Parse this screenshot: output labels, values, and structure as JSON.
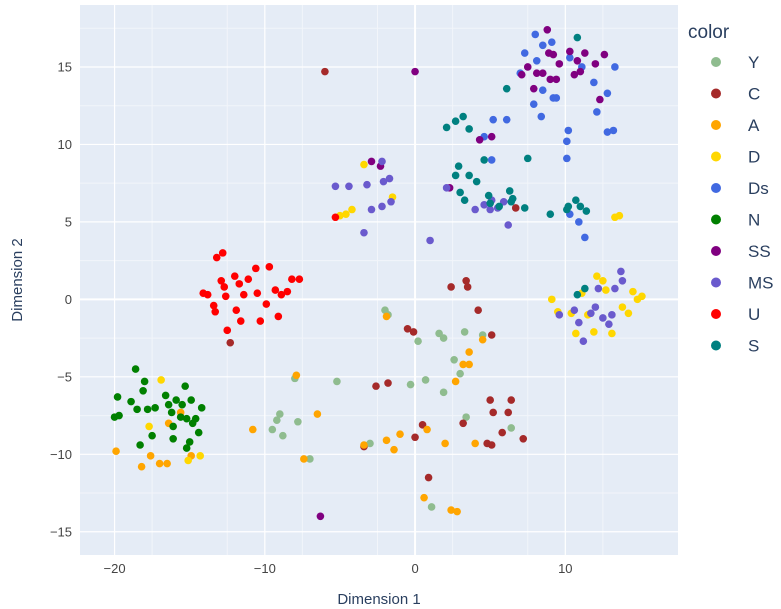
{
  "chart_data": {
    "type": "scatter",
    "xlabel": "Dimension 1",
    "ylabel": "Dimension 2",
    "xlim": [
      -22.3,
      17.5
    ],
    "ylim": [
      -16.5,
      19.0
    ],
    "xticks": [
      -20,
      -10,
      0,
      10
    ],
    "yticks": [
      -15,
      -10,
      -5,
      0,
      5,
      10,
      15
    ],
    "xtick_labels": [
      "−20",
      "−10",
      "0",
      "10"
    ],
    "ytick_labels": [
      "−15",
      "−10",
      "−5",
      "0",
      "5",
      "10",
      "15"
    ],
    "grid": true,
    "legend_title": "color",
    "legend_position": "right",
    "series": [
      {
        "name": "Y",
        "color": "#8fbc8f",
        "points": [
          [
            -8.8,
            -8.8
          ],
          [
            -9.2,
            -7.8
          ],
          [
            -9.0,
            -7.4
          ],
          [
            -9.5,
            -8.4
          ],
          [
            -7.0,
            -10.3
          ],
          [
            -8.0,
            -5.1
          ],
          [
            -5.2,
            -5.3
          ],
          [
            -7.8,
            -7.9
          ],
          [
            -3.0,
            -9.3
          ],
          [
            -2.0,
            -0.7
          ],
          [
            -1.8,
            -1.0
          ],
          [
            -0.3,
            -5.5
          ],
          [
            0.2,
            -2.7
          ],
          [
            1.6,
            -2.2
          ],
          [
            1.9,
            -2.5
          ],
          [
            2.6,
            -3.9
          ],
          [
            3.3,
            -2.1
          ],
          [
            3.0,
            -4.8
          ],
          [
            1.9,
            -6.0
          ],
          [
            0.7,
            -5.2
          ],
          [
            3.4,
            -7.6
          ],
          [
            4.5,
            -2.3
          ],
          [
            6.4,
            -8.3
          ],
          [
            1.1,
            -13.4
          ]
        ]
      },
      {
        "name": "C",
        "color": "#a52a2a",
        "points": [
          [
            -12.3,
            -2.8
          ],
          [
            -6.0,
            14.7
          ],
          [
            -2.6,
            -5.6
          ],
          [
            -1.8,
            -5.4
          ],
          [
            -0.5,
            -1.9
          ],
          [
            -0.1,
            -2.1
          ],
          [
            0.0,
            -8.9
          ],
          [
            0.5,
            -8.1
          ],
          [
            0.9,
            -11.5
          ],
          [
            2.4,
            0.8
          ],
          [
            3.4,
            1.2
          ],
          [
            3.5,
            0.8
          ],
          [
            4.2,
            -0.7
          ],
          [
            3.2,
            -8.0
          ],
          [
            5.1,
            -2.3
          ],
          [
            5.0,
            -6.5
          ],
          [
            5.2,
            -7.3
          ],
          [
            4.8,
            -9.3
          ],
          [
            5.1,
            -9.4
          ],
          [
            5.8,
            -8.6
          ],
          [
            6.2,
            -7.3
          ],
          [
            6.4,
            -6.5
          ],
          [
            7.2,
            -9.0
          ],
          [
            6.7,
            5.9
          ],
          [
            -3.4,
            -9.5
          ]
        ]
      },
      {
        "name": "A",
        "color": "#ffa500",
        "points": [
          [
            -19.9,
            -9.8
          ],
          [
            -18.2,
            -10.8
          ],
          [
            -17.6,
            -10.1
          ],
          [
            -17.0,
            -10.6
          ],
          [
            -16.5,
            -10.6
          ],
          [
            -16.4,
            -8.0
          ],
          [
            -15.6,
            -7.3
          ],
          [
            -14.9,
            -10.1
          ],
          [
            -10.8,
            -8.4
          ],
          [
            -7.9,
            -4.9
          ],
          [
            -7.4,
            -10.3
          ],
          [
            -6.5,
            -7.4
          ],
          [
            -3.4,
            -9.4
          ],
          [
            -1.9,
            -9.1
          ],
          [
            -1.4,
            -9.7
          ],
          [
            -1.0,
            -8.7
          ],
          [
            0.6,
            -12.8
          ],
          [
            0.8,
            -8.4
          ],
          [
            2.0,
            -9.3
          ],
          [
            2.4,
            -13.6
          ],
          [
            2.8,
            -13.7
          ],
          [
            3.2,
            -4.2
          ],
          [
            2.7,
            -5.3
          ],
          [
            3.6,
            -4.2
          ],
          [
            3.6,
            -3.4
          ],
          [
            4.0,
            -9.3
          ],
          [
            4.5,
            -2.6
          ],
          [
            -1.9,
            -1.1
          ]
        ]
      },
      {
        "name": "D",
        "color": "#ffd700",
        "points": [
          [
            -17.7,
            -8.2
          ],
          [
            -16.9,
            -5.2
          ],
          [
            -15.1,
            -10.4
          ],
          [
            -14.3,
            -10.1
          ],
          [
            -5.0,
            5.4
          ],
          [
            -4.6,
            5.5
          ],
          [
            -4.2,
            5.8
          ],
          [
            -3.4,
            8.7
          ],
          [
            -1.5,
            6.6
          ],
          [
            9.1,
            0.0
          ],
          [
            9.5,
            -0.8
          ],
          [
            10.4,
            -0.9
          ],
          [
            10.7,
            -2.2
          ],
          [
            11.1,
            0.4
          ],
          [
            11.5,
            -1.0
          ],
          [
            11.9,
            -2.1
          ],
          [
            12.1,
            1.5
          ],
          [
            12.5,
            1.2
          ],
          [
            12.7,
            0.6
          ],
          [
            13.1,
            -2.2
          ],
          [
            13.3,
            5.3
          ],
          [
            13.8,
            -0.5
          ],
          [
            14.2,
            -0.9
          ],
          [
            14.5,
            0.5
          ],
          [
            14.8,
            0.0
          ],
          [
            15.1,
            0.2
          ],
          [
            13.6,
            5.4
          ]
        ]
      },
      {
        "name": "Ds",
        "color": "#4169e1",
        "points": [
          [
            8.0,
            17.1
          ],
          [
            8.5,
            16.4
          ],
          [
            9.1,
            16.6
          ],
          [
            7.3,
            15.9
          ],
          [
            8.1,
            15.4
          ],
          [
            10.3,
            15.6
          ],
          [
            11.1,
            15.0
          ],
          [
            13.3,
            15.0
          ],
          [
            11.9,
            14.0
          ],
          [
            12.8,
            13.3
          ],
          [
            7.0,
            14.6
          ],
          [
            8.5,
            13.5
          ],
          [
            9.2,
            13.0
          ],
          [
            9.4,
            13.0
          ],
          [
            7.9,
            12.6
          ],
          [
            8.4,
            11.8
          ],
          [
            6.1,
            11.6
          ],
          [
            5.2,
            11.6
          ],
          [
            4.6,
            10.5
          ],
          [
            5.1,
            9.0
          ],
          [
            10.2,
            10.9
          ],
          [
            10.1,
            10.2
          ],
          [
            10.1,
            9.1
          ],
          [
            12.1,
            12.1
          ],
          [
            12.8,
            10.8
          ],
          [
            13.2,
            10.9
          ],
          [
            10.3,
            5.5
          ],
          [
            10.9,
            5.0
          ],
          [
            11.3,
            4.0
          ]
        ]
      },
      {
        "name": "N",
        "color": "#008000",
        "points": [
          [
            -20.0,
            -7.6
          ],
          [
            -19.8,
            -6.3
          ],
          [
            -19.7,
            -7.5
          ],
          [
            -18.9,
            -6.6
          ],
          [
            -18.6,
            -4.5
          ],
          [
            -18.5,
            -7.1
          ],
          [
            -18.3,
            -9.4
          ],
          [
            -18.1,
            -5.9
          ],
          [
            -18.0,
            -5.3
          ],
          [
            -17.8,
            -7.1
          ],
          [
            -17.5,
            -8.8
          ],
          [
            -17.3,
            -7.0
          ],
          [
            -16.4,
            -6.8
          ],
          [
            -16.2,
            -7.3
          ],
          [
            -16.1,
            -9.0
          ],
          [
            -15.9,
            -6.5
          ],
          [
            -15.6,
            -7.6
          ],
          [
            -15.5,
            -6.8
          ],
          [
            -15.3,
            -5.6
          ],
          [
            -15.2,
            -7.7
          ],
          [
            -15.0,
            -9.2
          ],
          [
            -14.9,
            -6.5
          ],
          [
            -14.8,
            -8.0
          ],
          [
            -14.6,
            -7.7
          ],
          [
            -14.4,
            -8.6
          ],
          [
            -14.2,
            -7.0
          ],
          [
            -16.6,
            -6.2
          ],
          [
            -15.2,
            -9.6
          ],
          [
            -16.1,
            -8.2
          ]
        ]
      },
      {
        "name": "SS",
        "color": "#800080",
        "points": [
          [
            -6.3,
            -14.0
          ],
          [
            -2.9,
            8.9
          ],
          [
            -2.3,
            8.6
          ],
          [
            0.0,
            14.7
          ],
          [
            2.3,
            7.2
          ],
          [
            4.3,
            10.3
          ],
          [
            5.1,
            10.5
          ],
          [
            7.1,
            14.5
          ],
          [
            7.5,
            15.0
          ],
          [
            7.9,
            13.6
          ],
          [
            8.5,
            14.6
          ],
          [
            9.0,
            14.2
          ],
          [
            9.4,
            14.2
          ],
          [
            8.8,
            17.4
          ],
          [
            9.2,
            15.8
          ],
          [
            9.6,
            15.2
          ],
          [
            10.3,
            16.0
          ],
          [
            10.6,
            14.5
          ],
          [
            11.0,
            14.7
          ],
          [
            11.3,
            15.9
          ],
          [
            12.0,
            15.2
          ],
          [
            12.3,
            12.9
          ],
          [
            12.6,
            15.8
          ],
          [
            8.1,
            14.6
          ],
          [
            8.9,
            15.9
          ],
          [
            10.8,
            15.4
          ]
        ]
      },
      {
        "name": "MS",
        "color": "#6a5acd",
        "points": [
          [
            -5.3,
            7.3
          ],
          [
            -4.4,
            7.3
          ],
          [
            -3.2,
            7.4
          ],
          [
            -2.9,
            5.8
          ],
          [
            -2.2,
            8.9
          ],
          [
            -2.1,
            7.6
          ],
          [
            -1.7,
            7.8
          ],
          [
            -1.6,
            6.3
          ],
          [
            -2.2,
            6.0
          ],
          [
            -3.4,
            4.3
          ],
          [
            1.0,
            3.8
          ],
          [
            2.1,
            7.2
          ],
          [
            4.0,
            5.8
          ],
          [
            4.6,
            6.1
          ],
          [
            5.0,
            5.8
          ],
          [
            5.5,
            5.9
          ],
          [
            5.1,
            6.4
          ],
          [
            6.2,
            4.8
          ],
          [
            5.9,
            6.3
          ],
          [
            9.6,
            -1.0
          ],
          [
            10.6,
            -0.7
          ],
          [
            10.9,
            -1.5
          ],
          [
            11.2,
            -2.7
          ],
          [
            11.7,
            -0.9
          ],
          [
            12.2,
            0.7
          ],
          [
            12.5,
            -1.2
          ],
          [
            12.9,
            -1.6
          ],
          [
            13.1,
            -1.0
          ],
          [
            13.3,
            0.7
          ],
          [
            13.7,
            1.8
          ],
          [
            13.8,
            1.2
          ],
          [
            12.0,
            -0.5
          ]
        ]
      },
      {
        "name": "U",
        "color": "#ff0000",
        "points": [
          [
            -14.1,
            0.4
          ],
          [
            -13.8,
            0.3
          ],
          [
            -13.4,
            -0.4
          ],
          [
            -13.3,
            -0.8
          ],
          [
            -13.2,
            2.7
          ],
          [
            -12.8,
            3.0
          ],
          [
            -12.7,
            0.8
          ],
          [
            -12.6,
            0.2
          ],
          [
            -12.5,
            -2.0
          ],
          [
            -12.0,
            1.5
          ],
          [
            -11.9,
            -0.7
          ],
          [
            -11.7,
            1.0
          ],
          [
            -11.6,
            -1.4
          ],
          [
            -11.4,
            0.3
          ],
          [
            -11.1,
            1.3
          ],
          [
            -10.6,
            2.0
          ],
          [
            -10.5,
            0.4
          ],
          [
            -10.3,
            -1.4
          ],
          [
            -9.9,
            -0.3
          ],
          [
            -9.7,
            2.1
          ],
          [
            -9.3,
            0.6
          ],
          [
            -9.1,
            -1.1
          ],
          [
            -8.9,
            0.3
          ],
          [
            -8.5,
            0.5
          ],
          [
            -8.2,
            1.3
          ],
          [
            -7.7,
            1.3
          ],
          [
            -5.3,
            5.3
          ],
          [
            -12.9,
            1.2
          ]
        ]
      },
      {
        "name": "S",
        "color": "#008080",
        "points": [
          [
            2.1,
            11.1
          ],
          [
            2.7,
            11.5
          ],
          [
            3.2,
            11.8
          ],
          [
            2.7,
            8.0
          ],
          [
            2.9,
            8.6
          ],
          [
            3.0,
            6.9
          ],
          [
            3.3,
            6.4
          ],
          [
            3.6,
            8.0
          ],
          [
            4.1,
            7.6
          ],
          [
            4.6,
            9.0
          ],
          [
            5.0,
            6.2
          ],
          [
            5.6,
            6.0
          ],
          [
            6.3,
            7.0
          ],
          [
            6.5,
            6.5
          ],
          [
            7.3,
            5.9
          ],
          [
            6.1,
            13.6
          ],
          [
            3.6,
            11.0
          ],
          [
            10.8,
            16.9
          ],
          [
            10.2,
            6.0
          ],
          [
            10.7,
            6.4
          ],
          [
            11.0,
            6.0
          ],
          [
            11.4,
            5.7
          ],
          [
            9.0,
            5.5
          ],
          [
            10.1,
            5.8
          ],
          [
            11.3,
            0.7
          ],
          [
            10.8,
            0.3
          ],
          [
            6.4,
            6.3
          ],
          [
            4.9,
            6.7
          ],
          [
            7.5,
            9.1
          ]
        ]
      }
    ]
  }
}
